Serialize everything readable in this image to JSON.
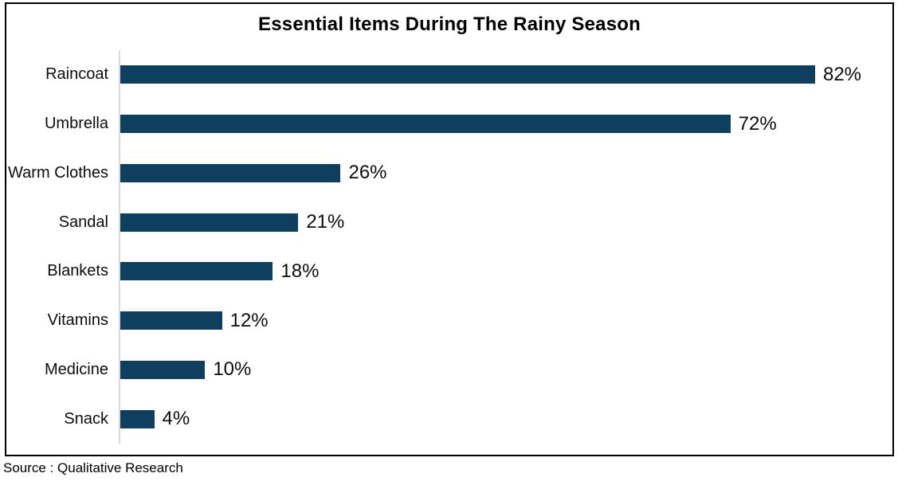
{
  "page": {
    "background": "#FFFFFF",
    "border_color": "#000000"
  },
  "colors": {
    "bar": "#0E3F5F",
    "axis_line": "#D9D9D9",
    "text": "#0D0D0D",
    "title_text": "#000000"
  },
  "source_note": "Source : Qualitative Research",
  "chart_data": {
    "type": "bar",
    "orientation": "horizontal",
    "title": "Essential Items During The Rainy Season",
    "categories": [
      "Raincoat",
      "Umbrella",
      "Warm Clothes",
      "Sandal",
      "Blankets",
      "Vitamins",
      "Medicine",
      "Snack"
    ],
    "values": [
      82,
      72,
      26,
      21,
      18,
      12,
      10,
      4
    ],
    "value_labels": [
      "82%",
      "72%",
      "26%",
      "21%",
      "18%",
      "12%",
      "10%",
      "4%"
    ],
    "xlabel": "",
    "ylabel": "",
    "xlim": [
      0,
      90
    ],
    "grid": false,
    "legend": false,
    "data_labels": true,
    "source": "Source : Qualitative Research"
  }
}
